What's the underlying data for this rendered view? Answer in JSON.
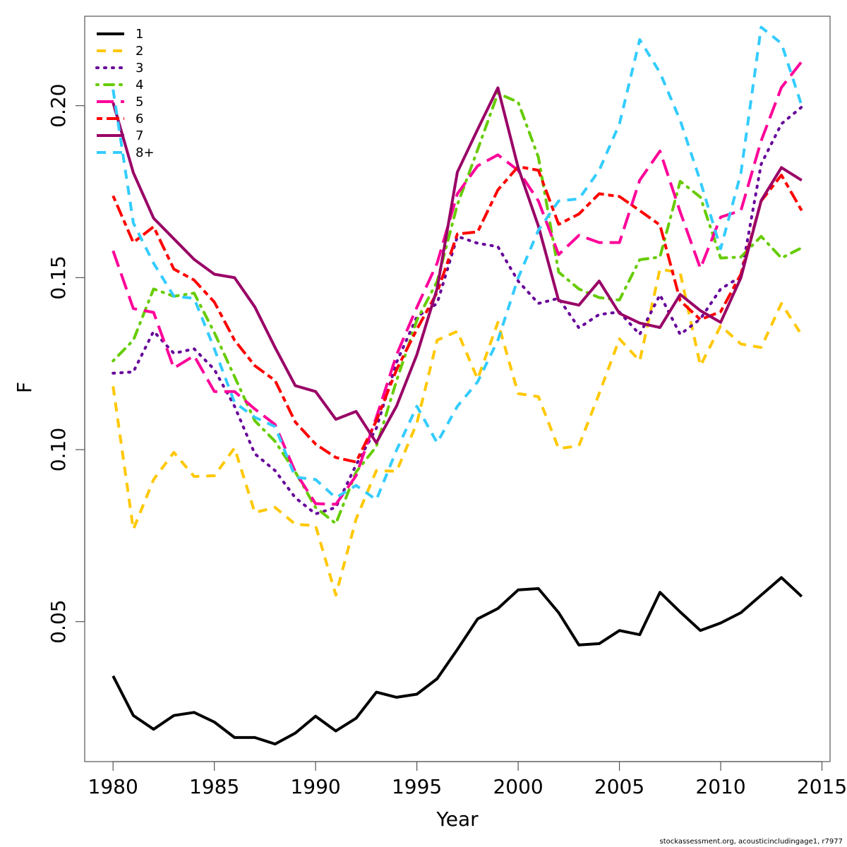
{
  "chart_data": {
    "type": "line",
    "title": "",
    "xlabel": "Year",
    "ylabel": "F",
    "xlim": [
      1978.6,
      2015.4
    ],
    "ylim": [
      0.0093,
      0.226
    ],
    "x_ticks": [
      1980,
      1985,
      1990,
      1995,
      2000,
      2005,
      2010,
      2015
    ],
    "x_tick_labels": [
      "1980",
      "1985",
      "1990",
      "1995",
      "2000",
      "2005",
      "2010",
      "2015"
    ],
    "y_ticks": [
      0.05,
      0.1,
      0.15,
      0.2
    ],
    "y_tick_labels": [
      "0.05",
      "0.10",
      "0.15",
      "0.20"
    ],
    "grid": false,
    "legend_position": "top-left",
    "x": [
      1980,
      1981,
      1982,
      1983,
      1984,
      1985,
      1986,
      1987,
      1988,
      1989,
      1990,
      1991,
      1992,
      1993,
      1994,
      1995,
      1996,
      1997,
      1998,
      1999,
      2000,
      2001,
      2002,
      2003,
      2004,
      2005,
      2006,
      2007,
      2008,
      2009,
      2010,
      2011,
      2012,
      2013,
      2014
    ],
    "series": [
      {
        "name": "1",
        "color": "#000000",
        "dash": "solid",
        "values": [
          0.0342,
          0.0227,
          0.0187,
          0.0227,
          0.0236,
          0.0208,
          0.0163,
          0.0163,
          0.0144,
          0.0176,
          0.0225,
          0.0182,
          0.0219,
          0.0295,
          0.028,
          0.0289,
          0.0334,
          0.0419,
          0.0508,
          0.0538,
          0.0592,
          0.0596,
          0.0526,
          0.0432,
          0.0436,
          0.0474,
          0.0462,
          0.0585,
          0.0528,
          0.0474,
          0.0496,
          0.0526,
          0.0577,
          0.0628,
          0.0573
        ]
      },
      {
        "name": "2",
        "color": "#FFC800",
        "dash": "dashed",
        "values": [
          0.1184,
          0.0768,
          0.0913,
          0.0992,
          0.0922,
          0.0924,
          0.1005,
          0.0817,
          0.0832,
          0.0783,
          0.0779,
          0.0577,
          0.0798,
          0.0939,
          0.0937,
          0.1077,
          0.1318,
          0.1344,
          0.1205,
          0.137,
          0.1163,
          0.1154,
          0.1003,
          0.1011,
          0.1163,
          0.1322,
          0.1258,
          0.1525,
          0.1514,
          0.1244,
          0.136,
          0.1307,
          0.1297,
          0.1425,
          0.1333
        ]
      },
      {
        "name": "3",
        "color": "#660099",
        "dash": "dotted",
        "values": [
          0.1222,
          0.1226,
          0.1344,
          0.128,
          0.1293,
          0.1233,
          0.1126,
          0.0988,
          0.0939,
          0.086,
          0.0813,
          0.0832,
          0.0956,
          0.1062,
          0.1254,
          0.1386,
          0.1425,
          0.162,
          0.16,
          0.159,
          0.149,
          0.1425,
          0.144,
          0.1354,
          0.1393,
          0.14,
          0.1335,
          0.145,
          0.1335,
          0.138,
          0.1467,
          0.1503,
          0.183,
          0.1947,
          0.1996
        ]
      },
      {
        "name": "4",
        "color": "#66CC00",
        "dash": "dotdash",
        "values": [
          0.1258,
          0.1318,
          0.1467,
          0.1446,
          0.1455,
          0.134,
          0.1212,
          0.1084,
          0.1024,
          0.0935,
          0.0832,
          0.0785,
          0.0935,
          0.1009,
          0.1201,
          0.1376,
          0.1489,
          0.1712,
          0.1872,
          0.2036,
          0.201,
          0.185,
          0.1516,
          0.1467,
          0.1442,
          0.1435,
          0.1552,
          0.156,
          0.178,
          0.1734,
          0.1557,
          0.156,
          0.162,
          0.1557,
          0.1587
        ]
      },
      {
        "name": "5",
        "color": "#FF0099",
        "dash": "longdash",
        "values": [
          0.1578,
          0.141,
          0.1399,
          0.1237,
          0.1273,
          0.1169,
          0.1169,
          0.1118,
          0.1073,
          0.0935,
          0.0843,
          0.0841,
          0.0924,
          0.1094,
          0.1276,
          0.1414,
          0.1542,
          0.1744,
          0.1825,
          0.1857,
          0.1812,
          0.1723,
          0.1567,
          0.1623,
          0.1602,
          0.1602,
          0.1783,
          0.1868,
          0.1691,
          0.1527,
          0.1676,
          0.1695,
          0.1898,
          0.2053,
          0.2128
        ]
      },
      {
        "name": "6",
        "color": "#FF0000",
        "dash": "twodash",
        "values": [
          0.1738,
          0.1602,
          0.1648,
          0.1525,
          0.1493,
          0.1429,
          0.1318,
          0.1244,
          0.1201,
          0.108,
          0.1016,
          0.0977,
          0.0964,
          0.1084,
          0.1233,
          0.135,
          0.1457,
          0.1627,
          0.1633,
          0.1755,
          0.1823,
          0.1812,
          0.1655,
          0.1685,
          0.1744,
          0.1736,
          0.1695,
          0.1653,
          0.1433,
          0.1378,
          0.1401,
          0.151,
          0.1723,
          0.1798,
          0.1695
        ]
      },
      {
        "name": "7",
        "color": "#990066",
        "dash": "solid",
        "values": [
          0.2009,
          0.1805,
          0.1673,
          0.1613,
          0.1553,
          0.151,
          0.15,
          0.1415,
          0.1297,
          0.1186,
          0.1169,
          0.1088,
          0.1111,
          0.102,
          0.1127,
          0.1276,
          0.1468,
          0.1807,
          0.1931,
          0.2052,
          0.182,
          0.165,
          0.1433,
          0.142,
          0.149,
          0.1396,
          0.1368,
          0.1355,
          0.1451,
          0.1404,
          0.137,
          0.15,
          0.1724,
          0.182,
          0.1783
        ]
      },
      {
        "name": "8+",
        "color": "#33CCFF",
        "dash": "dashed",
        "values": [
          0.2047,
          0.1659,
          0.1542,
          0.1446,
          0.144,
          0.1293,
          0.1137,
          0.1094,
          0.1067,
          0.092,
          0.0913,
          0.086,
          0.0896,
          0.0854,
          0.0999,
          0.1126,
          0.102,
          0.1126,
          0.1197,
          0.1318,
          0.1499,
          0.1638,
          0.1723,
          0.1729,
          0.1812,
          0.1947,
          0.2192,
          0.2096,
          0.1957,
          0.178,
          0.1584,
          0.1804,
          0.2228,
          0.2181,
          0.2
        ]
      }
    ]
  },
  "footer": {
    "credit": "stockassessment.org, acousticincludingage1, r7977"
  }
}
